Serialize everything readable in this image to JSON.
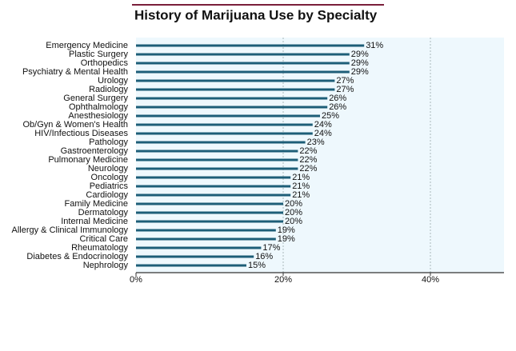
{
  "chart_data": {
    "type": "barh",
    "title": "History of Marijuana Use by Specialty",
    "categories": [
      "Emergency Medicine",
      "Plastic Surgery",
      "Orthopedics",
      "Psychiatry & Mental Health",
      "Urology",
      "Radiology",
      "General Surgery",
      "Ophthalmology",
      "Anesthesiology",
      "Ob/Gyn & Women's Health",
      "HIV/Infectious Diseases",
      "Pathology",
      "Gastroenterology",
      "Pulmonary Medicine",
      "Neurology",
      "Oncology",
      "Pediatrics",
      "Cardiology",
      "Family Medicine",
      "Dermatology",
      "Internal Medicine",
      "Allergy & Clinical Immunology",
      "Critical Care",
      "Rheumatology",
      "Diabetes & Endocrinology",
      "Nephrology"
    ],
    "values": [
      31,
      29,
      29,
      29,
      27,
      27,
      26,
      26,
      25,
      24,
      24,
      23,
      22,
      22,
      22,
      21,
      21,
      21,
      20,
      20,
      20,
      19,
      19,
      17,
      16,
      15
    ],
    "value_labels": [
      "31%",
      "29%",
      "29%",
      "29%",
      "27%",
      "27%",
      "26%",
      "26%",
      "25%",
      "24%",
      "24%",
      "23%",
      "22%",
      "22%",
      "22%",
      "21%",
      "21%",
      "21%",
      "20%",
      "20%",
      "20%",
      "19%",
      "19%",
      "17%",
      "16%",
      "15%"
    ],
    "color": "#1d5e78",
    "xlim": [
      0,
      50
    ],
    "xticks": [
      {
        "value": 0,
        "label": "0%"
      },
      {
        "value": 20,
        "label": "20%"
      },
      {
        "value": 40,
        "label": "40%"
      }
    ],
    "grid": true
  }
}
